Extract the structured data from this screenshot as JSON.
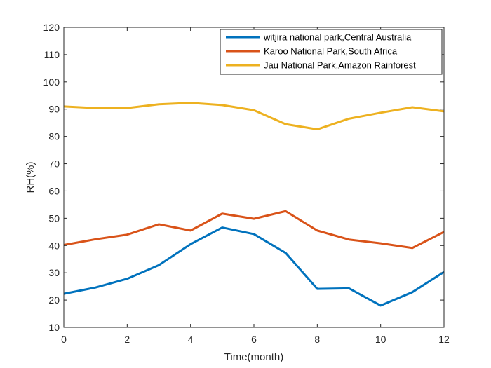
{
  "chart_data": {
    "type": "line",
    "title": "",
    "xlabel": "Time(month)",
    "ylabel": "RH(%)",
    "xlim": [
      0,
      12
    ],
    "ylim": [
      10,
      120
    ],
    "xticks": [
      0,
      2,
      4,
      6,
      8,
      10,
      12
    ],
    "yticks": [
      10,
      20,
      30,
      40,
      50,
      60,
      70,
      80,
      90,
      100,
      110,
      120
    ],
    "grid": false,
    "legend_position": "top-right",
    "x": [
      0,
      1,
      2,
      3,
      4,
      5,
      6,
      7,
      8,
      9,
      10,
      11,
      12
    ],
    "series": [
      {
        "name": "witjira national park,Central Australia",
        "color": "#0072BD",
        "values": [
          22.3,
          24.6,
          27.8,
          32.8,
          40.5,
          46.6,
          44.2,
          37.3,
          24.1,
          24.3,
          18.0,
          22.9,
          30.3
        ]
      },
      {
        "name": "Karoo National Park,South Africa",
        "color": "#D95319",
        "values": [
          40.2,
          42.3,
          44.0,
          47.8,
          45.5,
          51.7,
          49.8,
          52.6,
          45.5,
          42.2,
          40.8,
          39.1,
          45.0
        ]
      },
      {
        "name": "Jau National Park,Amazon Rainforest",
        "color": "#EDB120",
        "values": [
          91.0,
          90.4,
          90.4,
          91.8,
          92.3,
          91.5,
          89.6,
          84.5,
          82.6,
          86.5,
          88.7,
          90.7,
          89.2
        ]
      }
    ]
  }
}
